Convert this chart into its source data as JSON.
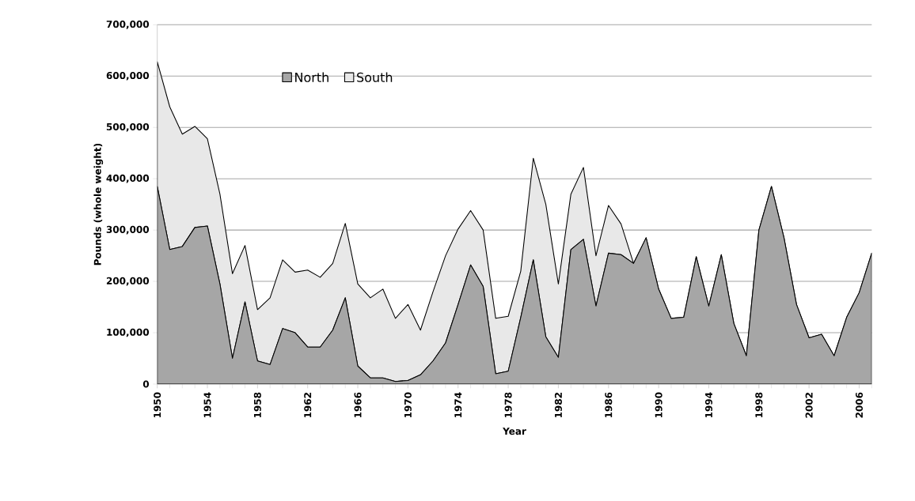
{
  "chart_data": {
    "type": "area",
    "stacked": true,
    "xlabel": "Year",
    "ylabel": "Pounds (whole weight)",
    "x": [
      1950,
      1951,
      1952,
      1953,
      1954,
      1955,
      1956,
      1957,
      1958,
      1959,
      1960,
      1961,
      1962,
      1963,
      1964,
      1965,
      1966,
      1967,
      1968,
      1969,
      1970,
      1971,
      1972,
      1973,
      1974,
      1975,
      1976,
      1977,
      1978,
      1979,
      1980,
      1981,
      1982,
      1983,
      1984,
      1985,
      1986,
      1987,
      1988,
      1989,
      1990,
      1991,
      1992,
      1993,
      1994,
      1995,
      1996,
      1997,
      1998,
      1999,
      2000,
      2001,
      2002,
      2003,
      2004,
      2005,
      2006,
      2007
    ],
    "series": [
      {
        "name": "North",
        "color": "#a6a6a6",
        "values": [
          385000,
          262000,
          268000,
          305000,
          308000,
          195000,
          50000,
          160000,
          45000,
          38000,
          108000,
          100000,
          72000,
          72000,
          105000,
          168000,
          35000,
          12000,
          12000,
          5000,
          7000,
          18000,
          45000,
          80000,
          155000,
          232000,
          190000,
          20000,
          25000,
          130000,
          242000,
          92000,
          52000,
          262000,
          282000,
          152000,
          255000,
          252000,
          235000,
          285000,
          185000,
          128000,
          130000,
          248000,
          152000,
          252000,
          118000,
          55000,
          300000,
          385000,
          285000,
          155000,
          90000,
          97000,
          55000,
          130000,
          178000,
          255000
        ]
      },
      {
        "name": "South",
        "color": "#e8e8e8",
        "values": [
          243000,
          278000,
          219000,
          197000,
          170000,
          175000,
          165000,
          110000,
          100000,
          130000,
          134000,
          118000,
          150000,
          136000,
          130000,
          145000,
          160000,
          156000,
          173000,
          123000,
          148000,
          87000,
          135000,
          170000,
          147000,
          106000,
          110000,
          108000,
          107000,
          90000,
          198000,
          258000,
          143000,
          108000,
          140000,
          98000,
          93000,
          60000,
          0,
          0,
          0,
          0,
          0,
          0,
          0,
          0,
          0,
          0,
          0,
          0,
          0,
          0,
          0,
          0,
          0,
          0,
          0,
          0
        ]
      }
    ],
    "xlim": [
      1950,
      2007
    ],
    "xticks": [
      1950,
      1954,
      1958,
      1962,
      1966,
      1970,
      1974,
      1978,
      1982,
      1986,
      1990,
      1994,
      1998,
      2002,
      2006
    ],
    "ylim": [
      0,
      700000
    ],
    "yticks": [
      {
        "value": 0,
        "label": "0"
      },
      {
        "value": 100000,
        "label": "100,000"
      },
      {
        "value": 200000,
        "label": "200,000"
      },
      {
        "value": 300000,
        "label": "300,000"
      },
      {
        "value": 400000,
        "label": "400,000"
      },
      {
        "value": 500000,
        "label": "500,000"
      },
      {
        "value": 600000,
        "label": "600,000"
      },
      {
        "value": 700000,
        "label": "700,000"
      }
    ],
    "grid": "y",
    "legend": "top left"
  }
}
